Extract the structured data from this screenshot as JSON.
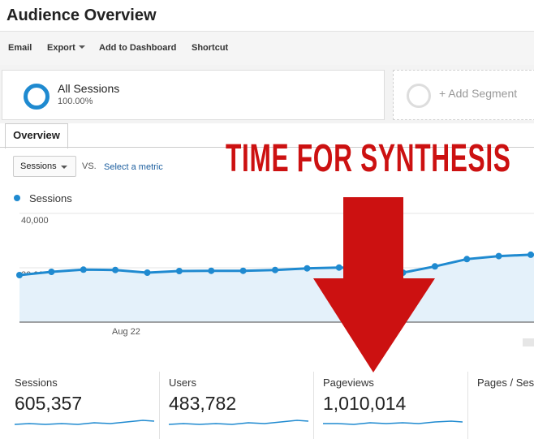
{
  "page": {
    "title": "Audience Overview"
  },
  "toolbar": {
    "email": "Email",
    "export": "Export",
    "add_to_dashboard": "Add to Dashboard",
    "shortcut": "Shortcut"
  },
  "segments": {
    "active": {
      "name": "All Sessions",
      "percent": "100.00%"
    },
    "add_label": "+ Add Segment"
  },
  "tabs": {
    "overview": "Overview"
  },
  "controls": {
    "metric": "Sessions",
    "vs": "VS.",
    "select_metric": "Select a metric"
  },
  "legend": {
    "label": "Sessions"
  },
  "overlay": {
    "text": "TIME FOR SYNTHESIS"
  },
  "chart_data": {
    "type": "area",
    "series": [
      {
        "name": "Sessions",
        "values": [
          17300,
          18500,
          19300,
          19200,
          18200,
          18800,
          18900,
          18900,
          19200,
          19800,
          20100,
          19900,
          18200,
          20500,
          23200,
          24300,
          24800
        ]
      }
    ],
    "y_ticks": [
      "40,000",
      "20,000"
    ],
    "ylim": [
      0,
      40000
    ],
    "x_tick_labels": [
      "Aug 22"
    ],
    "color": "#1f8ad0",
    "fill": "#e4f1fa"
  },
  "stats": [
    {
      "label": "Sessions",
      "value": "605,357"
    },
    {
      "label": "Users",
      "value": "483,782"
    },
    {
      "label": "Pageviews",
      "value": "1,010,014"
    },
    {
      "label": "Pages / Ses",
      "value": ""
    }
  ],
  "colors": {
    "accent": "#1f8ad0",
    "overlay_red": "#cc1111"
  }
}
